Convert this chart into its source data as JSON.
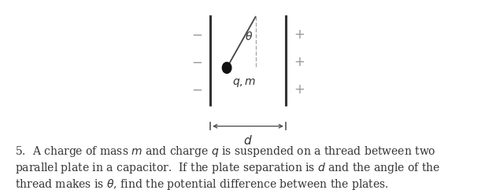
{
  "fig_width": 6.3,
  "fig_height": 2.42,
  "dpi": 100,
  "bg_color": "#ffffff",
  "plate_color": "#333333",
  "sign_color": "#999999",
  "thread_color": "#444444",
  "ball_color": "#111111",
  "dashed_color": "#aaaaaa",
  "text_color": "#333333",
  "arrow_color": "#555555",
  "angle_label": "$\\theta$",
  "charge_label": "$q, m$",
  "d_label": "$d$",
  "question_text_1": "5.  A charge of mass $m$ and charge $q$ is suspended on a thread between two",
  "question_text_2": "parallel plate in a capacitor.  If the plate separation is $d$ and the angle of the",
  "question_text_3": "thread makes is $\\theta$, find the potential difference between the plates.",
  "question_fontsize": 10.0
}
